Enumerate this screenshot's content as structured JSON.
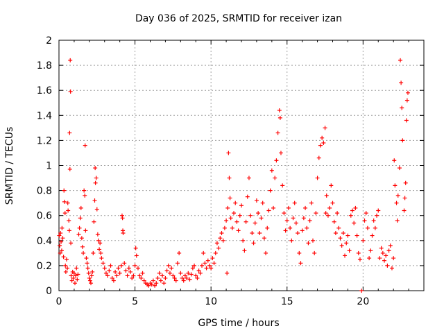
{
  "chart_data": {
    "type": "scatter",
    "title": "Day 036 of 2025, SRMTID for receiver izan",
    "xlabel": "GPS time / hours",
    "ylabel": "SRMTID / TECUs",
    "xlim": [
      0,
      24
    ],
    "ylim": [
      0,
      2
    ],
    "xticks": [
      0,
      5,
      10,
      15,
      20
    ],
    "xtick_labels": [
      "0",
      "5",
      "10",
      "15",
      "20"
    ],
    "yticks": [
      0,
      0.2,
      0.4,
      0.6,
      0.8,
      1,
      1.2,
      1.4,
      1.6,
      1.8,
      2
    ],
    "ytick_labels": [
      "0",
      "0.2",
      "0.4",
      "0.6",
      "0.8",
      "1",
      "1.2",
      "1.4",
      "1.6",
      "1.8",
      "2"
    ],
    "grid": true,
    "marker": "+",
    "color": "#ff0000",
    "series": [
      {
        "name": "SRMTID",
        "points": [
          [
            0.02,
            0.44
          ],
          [
            0.05,
            0.36
          ],
          [
            0.08,
            0.3
          ],
          [
            0.1,
            0.46
          ],
          [
            0.14,
            0.39
          ],
          [
            0.18,
            0.32
          ],
          [
            0.2,
            0.5
          ],
          [
            0.25,
            0.42
          ],
          [
            0.3,
            0.27
          ],
          [
            0.33,
            0.8
          ],
          [
            0.36,
            0.71
          ],
          [
            0.4,
            0.62
          ],
          [
            0.42,
            0.2
          ],
          [
            0.45,
            0.15
          ],
          [
            0.5,
            0.25
          ],
          [
            0.55,
            0.18
          ],
          [
            0.58,
            0.7
          ],
          [
            0.6,
            0.64
          ],
          [
            0.65,
            0.56
          ],
          [
            0.68,
            0.48
          ],
          [
            0.7,
            1.26
          ],
          [
            0.72,
            0.97
          ],
          [
            0.74,
            1.84
          ],
          [
            0.76,
            1.59
          ],
          [
            0.78,
            0.38
          ],
          [
            0.8,
            0.12
          ],
          [
            0.85,
            0.08
          ],
          [
            0.9,
            0.15
          ],
          [
            0.95,
            0.1
          ],
          [
            1.0,
            0.14
          ],
          [
            1.05,
            0.06
          ],
          [
            1.1,
            0.12
          ],
          [
            1.15,
            0.18
          ],
          [
            1.2,
            0.09
          ],
          [
            1.25,
            0.13
          ],
          [
            1.3,
            0.45
          ],
          [
            1.35,
            0.5
          ],
          [
            1.4,
            0.58
          ],
          [
            1.45,
            0.66
          ],
          [
            1.5,
            0.42
          ],
          [
            1.55,
            0.35
          ],
          [
            1.6,
            0.3
          ],
          [
            1.65,
            0.8
          ],
          [
            1.7,
            0.76
          ],
          [
            1.72,
            1.16
          ],
          [
            1.75,
            0.48
          ],
          [
            1.8,
            0.26
          ],
          [
            1.85,
            0.22
          ],
          [
            1.9,
            0.18
          ],
          [
            1.95,
            0.14
          ],
          [
            2.0,
            0.1
          ],
          [
            2.05,
            0.08
          ],
          [
            2.1,
            0.06
          ],
          [
            2.15,
            0.12
          ],
          [
            2.2,
            0.15
          ],
          [
            2.25,
            0.3
          ],
          [
            2.3,
            0.55
          ],
          [
            2.35,
            0.72
          ],
          [
            2.38,
            0.98
          ],
          [
            2.4,
            0.86
          ],
          [
            2.45,
            0.9
          ],
          [
            2.5,
            0.65
          ],
          [
            2.55,
            0.45
          ],
          [
            2.6,
            0.4
          ],
          [
            2.65,
            0.33
          ],
          [
            2.7,
            0.38
          ],
          [
            2.75,
            0.3
          ],
          [
            2.8,
            0.26
          ],
          [
            2.9,
            0.22
          ],
          [
            3.0,
            0.18
          ],
          [
            3.1,
            0.14
          ],
          [
            3.2,
            0.12
          ],
          [
            3.3,
            0.16
          ],
          [
            3.4,
            0.2
          ],
          [
            3.5,
            0.1
          ],
          [
            3.6,
            0.08
          ],
          [
            3.7,
            0.15
          ],
          [
            3.8,
            0.12
          ],
          [
            3.9,
            0.18
          ],
          [
            4.0,
            0.14
          ],
          [
            4.1,
            0.2
          ],
          [
            4.15,
            0.6
          ],
          [
            4.18,
            0.58
          ],
          [
            4.2,
            0.48
          ],
          [
            4.22,
            0.46
          ],
          [
            4.3,
            0.22
          ],
          [
            4.4,
            0.16
          ],
          [
            4.5,
            0.12
          ],
          [
            4.6,
            0.18
          ],
          [
            4.7,
            0.15
          ],
          [
            4.8,
            0.1
          ],
          [
            4.9,
            0.12
          ],
          [
            5.0,
            0.2
          ],
          [
            5.05,
            0.34
          ],
          [
            5.1,
            0.28
          ],
          [
            5.2,
            0.18
          ],
          [
            5.3,
            0.12
          ],
          [
            5.4,
            0.1
          ],
          [
            5.5,
            0.14
          ],
          [
            5.6,
            0.08
          ],
          [
            5.7,
            0.06
          ],
          [
            5.8,
            0.05
          ],
          [
            5.9,
            0.04
          ],
          [
            6.0,
            0.06
          ],
          [
            6.1,
            0.05
          ],
          [
            6.2,
            0.08
          ],
          [
            6.3,
            0.04
          ],
          [
            6.4,
            0.06
          ],
          [
            6.5,
            0.1
          ],
          [
            6.6,
            0.14
          ],
          [
            6.7,
            0.08
          ],
          [
            6.8,
            0.12
          ],
          [
            6.9,
            0.06
          ],
          [
            7.0,
            0.1
          ],
          [
            7.1,
            0.16
          ],
          [
            7.2,
            0.2
          ],
          [
            7.3,
            0.14
          ],
          [
            7.4,
            0.18
          ],
          [
            7.5,
            0.12
          ],
          [
            7.6,
            0.1
          ],
          [
            7.7,
            0.08
          ],
          [
            7.8,
            0.22
          ],
          [
            7.9,
            0.3
          ],
          [
            8.0,
            0.14
          ],
          [
            8.1,
            0.1
          ],
          [
            8.2,
            0.08
          ],
          [
            8.3,
            0.12
          ],
          [
            8.4,
            0.1
          ],
          [
            8.5,
            0.14
          ],
          [
            8.6,
            0.09
          ],
          [
            8.7,
            0.13
          ],
          [
            8.8,
            0.18
          ],
          [
            8.9,
            0.2
          ],
          [
            9.0,
            0.12
          ],
          [
            9.1,
            0.1
          ],
          [
            9.2,
            0.16
          ],
          [
            9.3,
            0.14
          ],
          [
            9.4,
            0.2
          ],
          [
            9.5,
            0.3
          ],
          [
            9.6,
            0.22
          ],
          [
            9.7,
            0.18
          ],
          [
            9.8,
            0.24
          ],
          [
            9.9,
            0.2
          ],
          [
            10.0,
            0.18
          ],
          [
            10.1,
            0.26
          ],
          [
            10.2,
            0.22
          ],
          [
            10.3,
            0.3
          ],
          [
            10.4,
            0.38
          ],
          [
            10.5,
            0.34
          ],
          [
            10.6,
            0.42
          ],
          [
            10.7,
            0.46
          ],
          [
            10.8,
            0.4
          ],
          [
            10.9,
            0.5
          ],
          [
            11.0,
            0.56
          ],
          [
            11.05,
            0.14
          ],
          [
            11.1,
            0.66
          ],
          [
            11.15,
            1.1
          ],
          [
            11.2,
            0.9
          ],
          [
            11.25,
            0.74
          ],
          [
            11.3,
            0.58
          ],
          [
            11.4,
            0.5
          ],
          [
            11.5,
            0.62
          ],
          [
            11.6,
            0.7
          ],
          [
            11.7,
            0.55
          ],
          [
            11.8,
            0.48
          ],
          [
            11.9,
            0.6
          ],
          [
            12.0,
            0.68
          ],
          [
            12.1,
            0.4
          ],
          [
            12.2,
            0.32
          ],
          [
            12.3,
            0.55
          ],
          [
            12.4,
            0.75
          ],
          [
            12.5,
            0.9
          ],
          [
            12.6,
            0.6
          ],
          [
            12.7,
            0.46
          ],
          [
            12.8,
            0.38
          ],
          [
            12.9,
            0.54
          ],
          [
            13.0,
            0.72
          ],
          [
            13.1,
            0.62
          ],
          [
            13.2,
            0.46
          ],
          [
            13.3,
            0.58
          ],
          [
            13.4,
            0.7
          ],
          [
            13.5,
            0.42
          ],
          [
            13.6,
            0.3
          ],
          [
            13.7,
            0.5
          ],
          [
            13.8,
            0.64
          ],
          [
            13.9,
            0.8
          ],
          [
            14.0,
            0.96
          ],
          [
            14.1,
            0.66
          ],
          [
            14.2,
            0.9
          ],
          [
            14.3,
            1.04
          ],
          [
            14.4,
            1.26
          ],
          [
            14.5,
            1.44
          ],
          [
            14.55,
            1.38
          ],
          [
            14.6,
            1.1
          ],
          [
            14.7,
            0.84
          ],
          [
            14.8,
            0.62
          ],
          [
            14.9,
            0.48
          ],
          [
            15.0,
            0.56
          ],
          [
            15.1,
            0.66
          ],
          [
            15.2,
            0.5
          ],
          [
            15.3,
            0.4
          ],
          [
            15.4,
            0.58
          ],
          [
            15.5,
            0.7
          ],
          [
            15.6,
            0.54
          ],
          [
            15.7,
            0.46
          ],
          [
            15.8,
            0.3
          ],
          [
            15.9,
            0.22
          ],
          [
            16.0,
            0.48
          ],
          [
            16.1,
            0.58
          ],
          [
            16.2,
            0.66
          ],
          [
            16.3,
            0.5
          ],
          [
            16.4,
            0.38
          ],
          [
            16.5,
            0.56
          ],
          [
            16.6,
            0.7
          ],
          [
            16.7,
            0.4
          ],
          [
            16.8,
            0.3
          ],
          [
            16.9,
            0.62
          ],
          [
            17.0,
            0.9
          ],
          [
            17.1,
            1.06
          ],
          [
            17.2,
            1.16
          ],
          [
            17.3,
            1.22
          ],
          [
            17.4,
            1.18
          ],
          [
            17.5,
            1.3
          ],
          [
            17.55,
            0.62
          ],
          [
            17.6,
            0.76
          ],
          [
            17.7,
            0.6
          ],
          [
            17.8,
            0.66
          ],
          [
            17.9,
            0.84
          ],
          [
            18.0,
            0.7
          ],
          [
            18.1,
            0.55
          ],
          [
            18.2,
            0.46
          ],
          [
            18.3,
            0.62
          ],
          [
            18.4,
            0.5
          ],
          [
            18.5,
            0.42
          ],
          [
            18.6,
            0.36
          ],
          [
            18.7,
            0.46
          ],
          [
            18.8,
            0.28
          ],
          [
            18.9,
            0.38
          ],
          [
            19.0,
            0.44
          ],
          [
            19.1,
            0.32
          ],
          [
            19.2,
            0.6
          ],
          [
            19.3,
            0.64
          ],
          [
            19.4,
            0.54
          ],
          [
            19.5,
            0.66
          ],
          [
            19.6,
            0.44
          ],
          [
            19.7,
            0.3
          ],
          [
            19.8,
            0.25
          ],
          [
            19.9,
            0.0
          ],
          [
            20.0,
            0.4
          ],
          [
            20.1,
            0.56
          ],
          [
            20.2,
            0.62
          ],
          [
            20.3,
            0.5
          ],
          [
            20.4,
            0.26
          ],
          [
            20.5,
            0.32
          ],
          [
            20.6,
            0.44
          ],
          [
            20.7,
            0.56
          ],
          [
            20.8,
            0.5
          ],
          [
            20.9,
            0.6
          ],
          [
            21.0,
            0.64
          ],
          [
            21.1,
            0.26
          ],
          [
            21.2,
            0.34
          ],
          [
            21.3,
            0.3
          ],
          [
            21.4,
            0.24
          ],
          [
            21.5,
            0.28
          ],
          [
            21.6,
            0.2
          ],
          [
            21.7,
            0.32
          ],
          [
            21.8,
            0.36
          ],
          [
            21.9,
            0.18
          ],
          [
            22.0,
            0.26
          ],
          [
            22.05,
            1.04
          ],
          [
            22.1,
            0.84
          ],
          [
            22.2,
            0.7
          ],
          [
            22.25,
            0.56
          ],
          [
            22.3,
            0.76
          ],
          [
            22.4,
            0.98
          ],
          [
            22.45,
            1.84
          ],
          [
            22.5,
            1.66
          ],
          [
            22.55,
            1.46
          ],
          [
            22.6,
            1.2
          ],
          [
            22.7,
            0.64
          ],
          [
            22.75,
            0.74
          ],
          [
            22.8,
            0.86
          ],
          [
            22.85,
            1.36
          ],
          [
            22.9,
            1.52
          ],
          [
            22.95,
            1.58
          ]
        ]
      }
    ]
  }
}
